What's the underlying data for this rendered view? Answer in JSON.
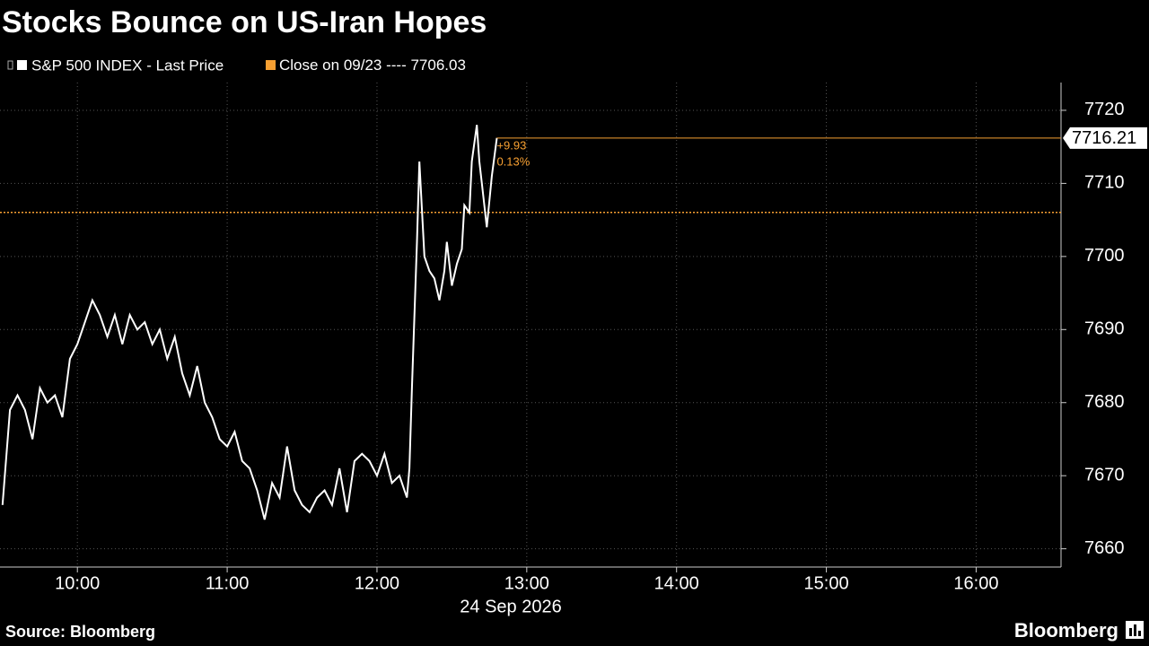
{
  "chart_data": {
    "type": "line",
    "title": "Stocks Bounce on US-Iran Hopes",
    "x_label": "24 Sep 2026",
    "source": "Source: Bloomberg",
    "brand": "Bloomberg",
    "x": [
      "09:30",
      "09:33",
      "09:36",
      "09:39",
      "09:42",
      "09:45",
      "09:48",
      "09:51",
      "09:54",
      "09:57",
      "10:00",
      "10:03",
      "10:06",
      "10:09",
      "10:12",
      "10:15",
      "10:18",
      "10:21",
      "10:24",
      "10:27",
      "10:30",
      "10:33",
      "10:36",
      "10:39",
      "10:42",
      "10:45",
      "10:48",
      "10:51",
      "10:54",
      "10:57",
      "11:00",
      "11:03",
      "11:06",
      "11:09",
      "11:12",
      "11:15",
      "11:18",
      "11:21",
      "11:24",
      "11:27",
      "11:30",
      "11:33",
      "11:36",
      "11:39",
      "11:42",
      "11:45",
      "11:48",
      "11:51",
      "11:54",
      "11:57",
      "12:00",
      "12:03",
      "12:06",
      "12:09",
      "12:12",
      "12:13",
      "12:14",
      "12:16",
      "12:17",
      "12:19",
      "12:21",
      "12:23",
      "12:25",
      "12:27",
      "12:28",
      "12:30",
      "12:32",
      "12:34",
      "12:35",
      "12:37",
      "12:38",
      "12:40",
      "12:41",
      "12:42",
      "12:44",
      "12:46",
      "12:48"
    ],
    "series": [
      {
        "name": "S&P 500 INDEX - Last Price",
        "color": "#ffffff",
        "values": [
          7666,
          7679,
          7681,
          7679,
          7675,
          7682,
          7680,
          7681,
          7678,
          7686,
          7688,
          7691,
          7694,
          7692,
          7689,
          7692,
          7688,
          7692,
          7690,
          7691,
          7688,
          7690,
          7686,
          7689,
          7684,
          7681,
          7685,
          7680,
          7678,
          7675,
          7674,
          7676,
          7672,
          7671,
          7668,
          7664,
          7669,
          7667,
          7674,
          7668,
          7666,
          7665,
          7667,
          7668,
          7666,
          7671,
          7665,
          7672,
          7673,
          7672,
          7670,
          7673,
          7669,
          7670,
          7667,
          7671,
          7682,
          7702,
          7713,
          7700,
          7698,
          7697,
          7694,
          7698,
          7702,
          7696,
          7699,
          7701,
          7707,
          7706,
          7713,
          7718,
          7713,
          7710,
          7704,
          7711,
          7716.21
        ]
      }
    ],
    "close": {
      "name": "Close on 09/23 ----",
      "value": 7706.03,
      "color": "#f7a032"
    },
    "annotations": [
      "+9.93",
      "0.13%"
    ],
    "xlim": [
      "09:29",
      "16:34"
    ],
    "xticks": [
      "10:00",
      "11:00",
      "12:00",
      "13:00",
      "14:00",
      "15:00",
      "16:00"
    ],
    "ylim": [
      7657.5,
      7723.8
    ],
    "yticks": [
      7660,
      7670,
      7680,
      7690,
      7700,
      7710,
      7720
    ],
    "grid": true
  }
}
